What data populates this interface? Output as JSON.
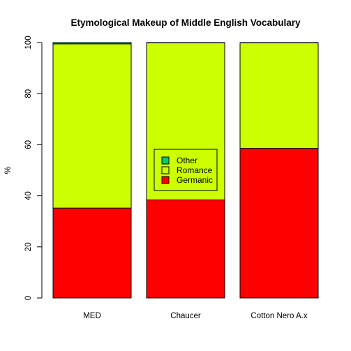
{
  "chart_data": {
    "type": "bar",
    "stacked": true,
    "title": "Etymological Makeup of Middle English Vocabulary",
    "xlabel": "",
    "ylabel": "%",
    "ylim": [
      0,
      100
    ],
    "yticks": [
      0,
      20,
      40,
      60,
      80,
      100
    ],
    "categories": [
      "MED",
      "Chaucer",
      "Cotton Nero A.x"
    ],
    "series": [
      {
        "name": "Germanic",
        "color": "#ff0000",
        "values": [
          35.2,
          38.4,
          58.6
        ]
      },
      {
        "name": "Romance",
        "color": "#ccff00",
        "values": [
          64.3,
          61.5,
          41.3
        ]
      },
      {
        "name": "Other",
        "color": "#00cc66",
        "values": [
          0.5,
          0.1,
          0.1
        ]
      }
    ],
    "legend_position": "center",
    "legend_order": [
      "Other",
      "Romance",
      "Germanic"
    ],
    "grid": false
  }
}
